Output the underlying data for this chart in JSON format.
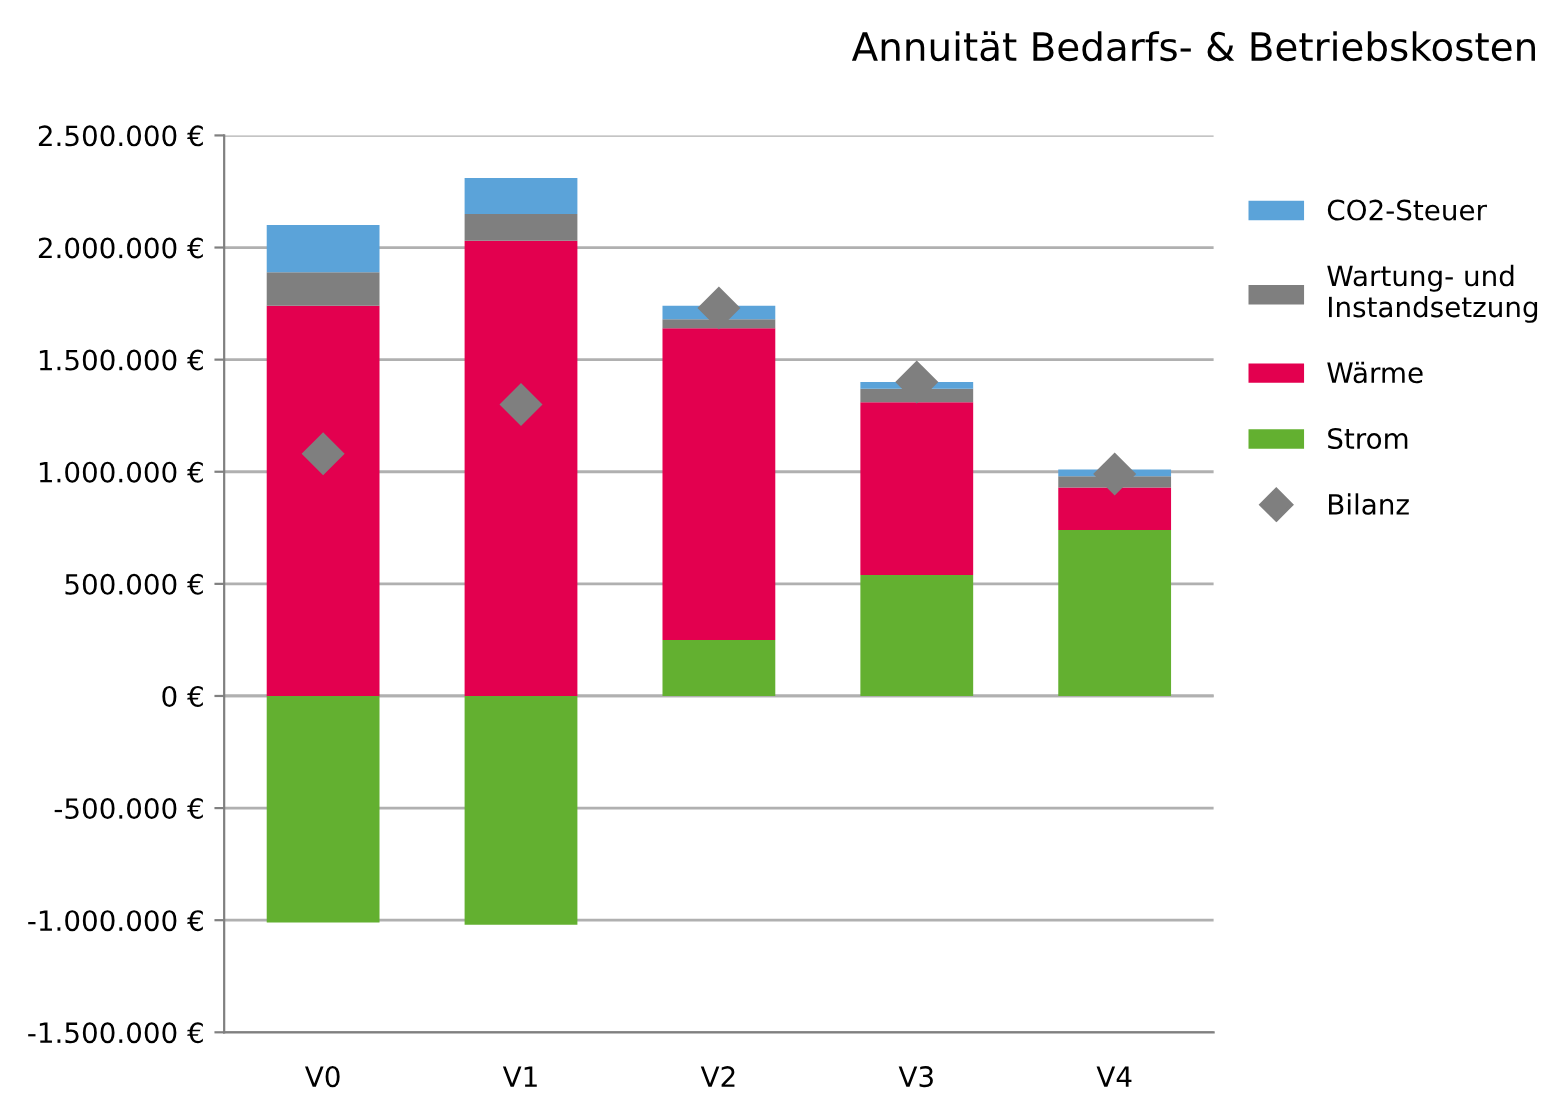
{
  "chart_data": {
    "type": "bar",
    "title": "Annuität Bedarfs- & Betriebskosten",
    "stacked": true,
    "categories": [
      "V0",
      "V1",
      "V2",
      "V3",
      "V4"
    ],
    "series": [
      {
        "name": "Strom",
        "color": "#63b030",
        "values": [
          -1010000,
          -1020000,
          250000,
          540000,
          740000
        ]
      },
      {
        "name": "Wärme",
        "color": "#e3004f",
        "values": [
          1740000,
          2030000,
          1390000,
          770000,
          190000
        ]
      },
      {
        "name": "Wartung- und\nInstandsetzung",
        "color": "#7f7f7f",
        "values": [
          150000,
          120000,
          40000,
          60000,
          50000
        ]
      },
      {
        "name": "CO2-Steuer",
        "color": "#5ba3d9",
        "values": [
          210000,
          160000,
          60000,
          30000,
          30000
        ]
      },
      {
        "name": "Bilanz",
        "type": "scatter",
        "color": "#7f7f7f",
        "values": [
          1080000,
          1300000,
          1730000,
          1400000,
          990000
        ]
      }
    ],
    "marker": "diamond",
    "grid": "y",
    "legend": "right",
    "ylim": [
      -1500000,
      2500000
    ],
    "yticks": [
      {
        "value": -1500000,
        "label": "-1.500.000 €"
      },
      {
        "value": -1000000,
        "label": "-1.000.000 €"
      },
      {
        "value": -500000,
        "label": "-500.000 €"
      },
      {
        "value": 0,
        "label": "0 €"
      },
      {
        "value": 500000,
        "label": "500.000 €"
      },
      {
        "value": 1000000,
        "label": "1.000.000 €"
      },
      {
        "value": 1500000,
        "label": "1.500.000 €"
      },
      {
        "value": 2000000,
        "label": "2.000.000 €"
      },
      {
        "value": 2500000,
        "label": "2.500.000 €"
      }
    ]
  }
}
